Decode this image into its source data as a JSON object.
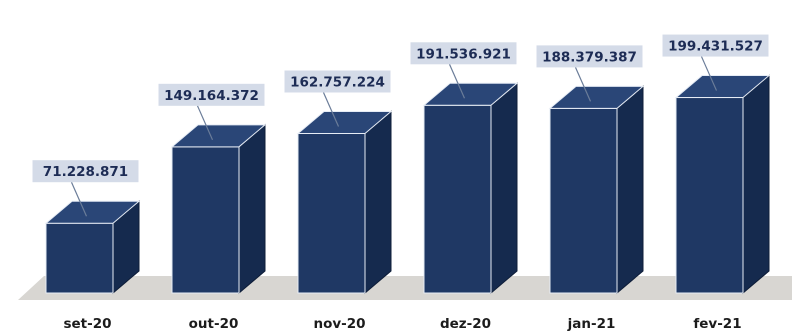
{
  "chart_data": {
    "type": "bar",
    "title": "",
    "xlabel": "",
    "ylabel": "",
    "categories": [
      "set-20",
      "out-20",
      "nov-20",
      "dez-20",
      "jan-21",
      "fev-21"
    ],
    "values": [
      71228871,
      149164372,
      162757224,
      191536921,
      188379387,
      199431527
    ],
    "data_labels": [
      "71.228.871",
      "149.164.372",
      "162.757.224",
      "191.536.921",
      "188.379.387",
      "199.431.527"
    ],
    "ylim": [
      0,
      200000000
    ],
    "grid": false,
    "legend": "none",
    "style": "3d-column",
    "colors": {
      "bar_front": "#1f3864",
      "bar_side": "#152a4e",
      "bar_top": "#2a4677",
      "label_box": "#d4dbe8",
      "floor": "#d8d6d2"
    }
  }
}
